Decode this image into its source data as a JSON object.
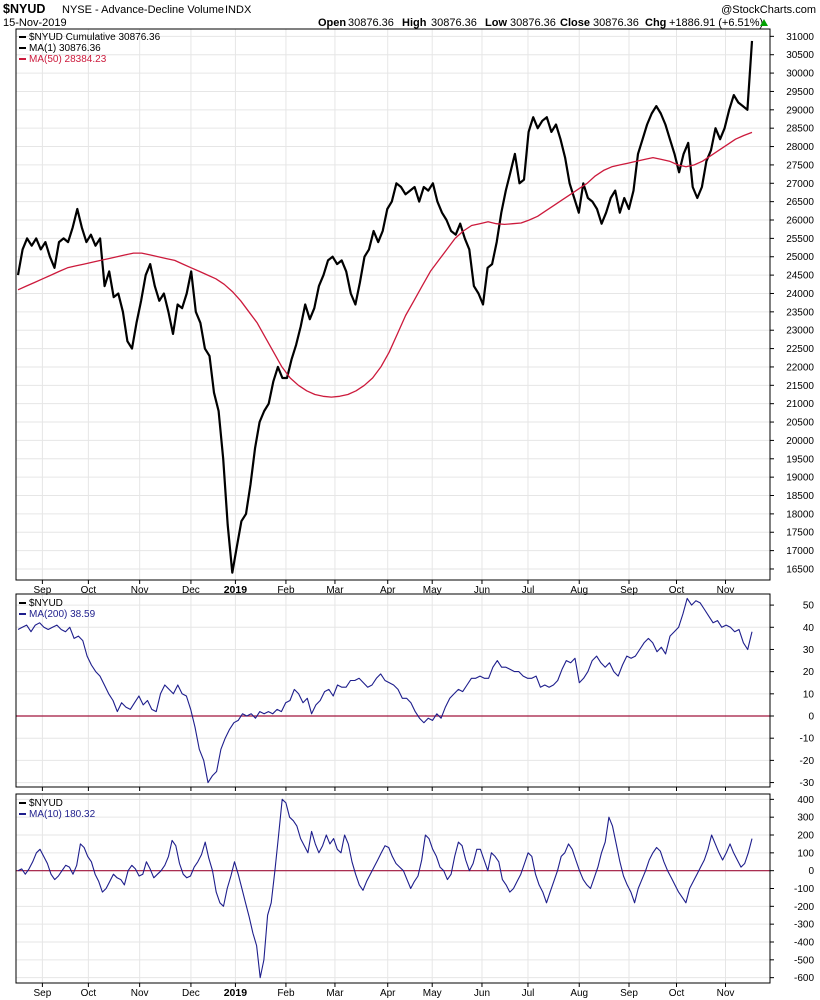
{
  "header": {
    "symbol": "$NYUD",
    "exchange_name": "NYSE - Advance-Decline Volume",
    "type": "INDX",
    "date": "15-Nov-2019",
    "open_label": "Open",
    "open_value": "30876.36",
    "high_label": "High",
    "high_value": "30876.36",
    "low_label": "Low",
    "low_value": "30876.36",
    "close_label": "Close",
    "close_value": "30876.36",
    "chg_label": "Chg",
    "chg_value": "+1886.91 (+6.51%)",
    "credit": "@StockCharts.com"
  },
  "colors": {
    "price": "#000000",
    "ma50": "#cc1a3c",
    "oscillator": "#1e1e8c",
    "zero_line": "#a0143c",
    "grid": "#e6e6e6",
    "up_arrow": "#00a000"
  },
  "chart_data": [
    {
      "type": "line",
      "panel": "price",
      "legend": [
        "$NYUD Cumulative 30876.36",
        "MA(1) 30876.36",
        "MA(50) 28384.23"
      ],
      "ylim": [
        16200,
        31200
      ],
      "yticks": [
        16500,
        17000,
        17500,
        18000,
        18500,
        19000,
        19500,
        20000,
        20500,
        21000,
        21500,
        22000,
        22500,
        23000,
        23500,
        24000,
        24500,
        25000,
        25500,
        26000,
        26500,
        27000,
        27500,
        28000,
        28500,
        29000,
        29500,
        30000,
        30500,
        31000
      ],
      "xlabels": [
        "Sep",
        "Oct",
        "Nov",
        "Dec",
        "2019",
        "Feb",
        "Mar",
        "Apr",
        "May",
        "Jun",
        "Jul",
        "Aug",
        "Sep",
        "Oct",
        "Nov"
      ],
      "series": [
        {
          "name": "$NYUD Cumulative",
          "values": [
            24500,
            25200,
            25500,
            25300,
            25500,
            25200,
            25400,
            25000,
            24700,
            25400,
            25500,
            25400,
            25800,
            26300,
            25800,
            25400,
            25600,
            25300,
            25500,
            24200,
            24600,
            23900,
            24000,
            23500,
            22700,
            22500,
            23200,
            23800,
            24500,
            24800,
            24200,
            23800,
            24000,
            23500,
            22900,
            23700,
            23600,
            24000,
            24600,
            23500,
            23200,
            22500,
            22300,
            21300,
            20800,
            19500,
            17700,
            16400,
            17100,
            17800,
            18000,
            18800,
            19800,
            20500,
            20800,
            21000,
            21600,
            22000,
            21700,
            21700,
            22200,
            22600,
            23100,
            23700,
            23300,
            23600,
            24200,
            24500,
            24900,
            25000,
            24800,
            24900,
            24600,
            24000,
            23700,
            24300,
            25000,
            25200,
            25700,
            25400,
            25700,
            26300,
            26500,
            27000,
            26900,
            26700,
            26800,
            26900,
            26500,
            26900,
            26800,
            27000,
            26500,
            26200,
            26000,
            25700,
            25600,
            25900,
            25500,
            25200,
            24200,
            24000,
            23700,
            24700,
            24800,
            25400,
            26200,
            26800,
            27300,
            27800,
            27000,
            27100,
            28400,
            28800,
            28500,
            28700,
            28800,
            28400,
            28600,
            28200,
            27700,
            27000,
            26600,
            26200,
            27000,
            26600,
            26500,
            26300,
            25900,
            26200,
            26600,
            26800,
            26200,
            26600,
            26300,
            26800,
            27800,
            28200,
            28600,
            28900,
            29100,
            28900,
            28600,
            28200,
            27800,
            27300,
            27800,
            28100,
            26900,
            26600,
            26900,
            27600,
            27900,
            28500,
            28200,
            28500,
            29000,
            29400,
            29200,
            29100,
            29000,
            30876
          ]
        },
        {
          "name": "MA(50)",
          "values": [
            24100,
            24200,
            24300,
            24400,
            24500,
            24600,
            24700,
            24750,
            24800,
            24850,
            24900,
            24950,
            25000,
            25050,
            25100,
            25100,
            25050,
            25000,
            24950,
            24900,
            24800,
            24700,
            24600,
            24500,
            24400,
            24250,
            24050,
            23800,
            23500,
            23200,
            22800,
            22400,
            22000,
            21700,
            21500,
            21350,
            21250,
            21200,
            21180,
            21200,
            21250,
            21350,
            21500,
            21700,
            22000,
            22400,
            22900,
            23400,
            23800,
            24200,
            24600,
            24900,
            25200,
            25500,
            25700,
            25850,
            25900,
            25950,
            25900,
            25880,
            25900,
            25920,
            26000,
            26100,
            26250,
            26400,
            26550,
            26700,
            26850,
            27000,
            27200,
            27350,
            27450,
            27500,
            27550,
            27600,
            27650,
            27700,
            27650,
            27600,
            27500,
            27450,
            27500,
            27600,
            27750,
            27900,
            28050,
            28200,
            28300,
            28384
          ]
        }
      ]
    },
    {
      "type": "line",
      "panel": "ma200",
      "legend": [
        "$NYUD",
        "MA(200) 38.59"
      ],
      "ylim": [
        -32,
        55
      ],
      "yticks": [
        -30,
        -20,
        -10,
        0,
        10,
        20,
        30,
        40,
        50
      ],
      "xlabels": [
        "Sep",
        "Oct",
        "Nov",
        "Dec",
        "2019",
        "Feb",
        "Mar",
        "Apr",
        "May",
        "Jun",
        "Jul",
        "Aug",
        "Sep",
        "Oct",
        "Nov"
      ],
      "series": [
        {
          "name": "MA(200)",
          "values": [
            39,
            40,
            41,
            38,
            41,
            42,
            40,
            39,
            40,
            41,
            39,
            38,
            40,
            35,
            36,
            34,
            27,
            23,
            20,
            18,
            14,
            10,
            7,
            2,
            6,
            4,
            3,
            6,
            9,
            5,
            7,
            3,
            2,
            10,
            14,
            12,
            10,
            14,
            10,
            9,
            3,
            -5,
            -15,
            -20,
            -30,
            -27,
            -25,
            -15,
            -10,
            -6,
            -3,
            -2,
            1,
            0,
            1,
            -1,
            2,
            1,
            2,
            1,
            3,
            2,
            6,
            7,
            12,
            10,
            6,
            8,
            1,
            5,
            7,
            11,
            12,
            9,
            14,
            13,
            13,
            16,
            16,
            17,
            15,
            13,
            14,
            17,
            19,
            16,
            15,
            14,
            12,
            8,
            8,
            6,
            2,
            -1,
            -3,
            -1,
            -2,
            1,
            -1,
            4,
            8,
            10,
            12,
            11,
            14,
            17,
            17,
            18,
            17,
            17,
            22,
            25,
            22,
            22,
            21,
            20,
            20,
            18,
            17,
            17,
            18,
            13,
            14,
            13,
            14,
            16,
            21,
            25,
            24,
            26,
            15,
            17,
            20,
            25,
            27,
            24,
            22,
            24,
            20,
            18,
            23,
            27,
            26,
            27,
            30,
            33,
            35,
            33,
            29,
            31,
            28,
            36,
            38,
            40,
            46,
            53,
            50,
            52,
            51,
            48,
            45,
            42,
            43,
            40,
            41,
            40,
            38,
            39,
            33,
            30,
            38
          ]
        }
      ]
    },
    {
      "type": "line",
      "panel": "ma10",
      "legend": [
        "$NYUD",
        "MA(10) 180.32"
      ],
      "ylim": [
        -630,
        430
      ],
      "yticks": [
        -600,
        -500,
        -400,
        -300,
        -200,
        -100,
        0,
        100,
        200,
        300,
        400
      ],
      "xlabels": [
        "Sep",
        "Oct",
        "Nov",
        "Dec",
        "2019",
        "Feb",
        "Mar",
        "Apr",
        "May",
        "Jun",
        "Jul",
        "Aug",
        "Sep",
        "Oct",
        "Nov"
      ],
      "series": [
        {
          "name": "MA(10)",
          "values": [
            0,
            10,
            -20,
            10,
            50,
            100,
            120,
            80,
            40,
            -20,
            -50,
            -30,
            0,
            30,
            20,
            -20,
            30,
            150,
            130,
            80,
            50,
            -20,
            -60,
            -120,
            -100,
            -60,
            -20,
            -40,
            -50,
            -80,
            0,
            30,
            10,
            -30,
            -20,
            50,
            10,
            -40,
            -20,
            0,
            30,
            80,
            170,
            140,
            40,
            -20,
            -40,
            -30,
            20,
            50,
            90,
            160,
            70,
            0,
            -120,
            -180,
            -200,
            -100,
            -30,
            50,
            -20,
            -100,
            -180,
            -260,
            -350,
            -420,
            -600,
            -500,
            -250,
            -180,
            0,
            200,
            400,
            380,
            300,
            280,
            250,
            180,
            140,
            100,
            220,
            150,
            100,
            140,
            200,
            150,
            180,
            120,
            100,
            200,
            150,
            50,
            -20,
            -80,
            -110,
            -60,
            -20,
            20,
            60,
            100,
            140,
            130,
            80,
            40,
            20,
            0,
            -50,
            -100,
            -60,
            -30,
            60,
            200,
            180,
            120,
            80,
            20,
            0,
            -50,
            -20,
            80,
            160,
            140,
            60,
            0,
            40,
            120,
            120,
            60,
            0,
            100,
            80,
            50,
            -50,
            -80,
            -120,
            -100,
            -60,
            -20,
            40,
            100,
            80,
            -20,
            -80,
            -120,
            -180,
            -120,
            -60,
            0,
            80,
            100,
            150,
            120,
            60,
            0,
            -50,
            -80,
            -100,
            -40,
            20,
            100,
            160,
            300,
            250,
            150,
            50,
            -30,
            -80,
            -120,
            -180,
            -100,
            -50,
            0,
            60,
            100,
            130,
            110,
            50,
            0,
            -40,
            -80,
            -120,
            -150,
            -180,
            -100,
            -60,
            -20,
            20,
            60,
            120,
            200,
            150,
            100,
            60,
            100,
            150,
            100,
            60,
            20,
            40,
            100,
            180
          ]
        }
      ]
    }
  ]
}
